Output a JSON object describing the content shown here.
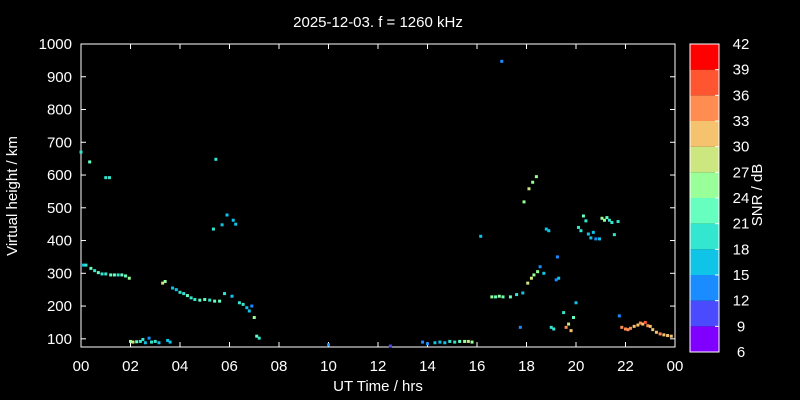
{
  "chart_data": {
    "type": "scatter",
    "title": "2025-12-03. f = 1260 kHz",
    "xlabel": "UT Time / hrs",
    "ylabel": "Virtual height / km",
    "colorbar_label": "SNR / dB",
    "xlim": [
      0,
      24
    ],
    "ylim": [
      75,
      1000
    ],
    "x_ticks": [
      "00",
      "02",
      "04",
      "06",
      "08",
      "10",
      "12",
      "14",
      "16",
      "18",
      "20",
      "22",
      "00"
    ],
    "y_ticks": [
      "100",
      "200",
      "300",
      "400",
      "500",
      "600",
      "700",
      "800",
      "900",
      "1000"
    ],
    "colorbar": {
      "ticks": [
        "6",
        "9",
        "12",
        "15",
        "18",
        "21",
        "24",
        "27",
        "30",
        "33",
        "36",
        "39",
        "42"
      ],
      "bins": [
        {
          "from": 6,
          "to": 9,
          "color": "#8000ff"
        },
        {
          "from": 9,
          "to": 12,
          "color": "#4a4aff"
        },
        {
          "from": 12,
          "to": 15,
          "color": "#1a8cff"
        },
        {
          "from": 15,
          "to": 18,
          "color": "#10c4e8"
        },
        {
          "from": 18,
          "to": 21,
          "color": "#33e6d0"
        },
        {
          "from": 21,
          "to": 24,
          "color": "#66ffc0"
        },
        {
          "from": 24,
          "to": 27,
          "color": "#99ff99"
        },
        {
          "from": 27,
          "to": 30,
          "color": "#cce680"
        },
        {
          "from": 30,
          "to": 33,
          "color": "#f5c26e"
        },
        {
          "from": 33,
          "to": 36,
          "color": "#ff8c50"
        },
        {
          "from": 36,
          "to": 39,
          "color": "#ff5530"
        },
        {
          "from": 39,
          "to": 42,
          "color": "#ff0000"
        }
      ]
    },
    "points": [
      {
        "t": 0.0,
        "h": 670,
        "snr": 20
      },
      {
        "t": 0.35,
        "h": 640,
        "snr": 21
      },
      {
        "t": 1.0,
        "h": 592,
        "snr": 19
      },
      {
        "t": 1.15,
        "h": 592,
        "snr": 18
      },
      {
        "t": 0.1,
        "h": 325,
        "snr": 17
      },
      {
        "t": 0.2,
        "h": 325,
        "snr": 18
      },
      {
        "t": 0.4,
        "h": 315,
        "snr": 21
      },
      {
        "t": 0.55,
        "h": 308,
        "snr": 20
      },
      {
        "t": 0.7,
        "h": 302,
        "snr": 21
      },
      {
        "t": 0.85,
        "h": 298,
        "snr": 20
      },
      {
        "t": 1.0,
        "h": 298,
        "snr": 19
      },
      {
        "t": 1.2,
        "h": 295,
        "snr": 21
      },
      {
        "t": 1.35,
        "h": 295,
        "snr": 22
      },
      {
        "t": 1.5,
        "h": 295,
        "snr": 20
      },
      {
        "t": 1.65,
        "h": 295,
        "snr": 21
      },
      {
        "t": 1.8,
        "h": 292,
        "snr": 22
      },
      {
        "t": 1.95,
        "h": 285,
        "snr": 24
      },
      {
        "t": 3.3,
        "h": 270,
        "snr": 28
      },
      {
        "t": 3.4,
        "h": 275,
        "snr": 26
      },
      {
        "t": 3.7,
        "h": 255,
        "snr": 17
      },
      {
        "t": 3.85,
        "h": 250,
        "snr": 16
      },
      {
        "t": 4.0,
        "h": 242,
        "snr": 18
      },
      {
        "t": 4.15,
        "h": 238,
        "snr": 20
      },
      {
        "t": 4.3,
        "h": 232,
        "snr": 21
      },
      {
        "t": 4.45,
        "h": 225,
        "snr": 20
      },
      {
        "t": 4.6,
        "h": 220,
        "snr": 19
      },
      {
        "t": 4.8,
        "h": 218,
        "snr": 21
      },
      {
        "t": 5.0,
        "h": 220,
        "snr": 22
      },
      {
        "t": 5.2,
        "h": 218,
        "snr": 20
      },
      {
        "t": 5.4,
        "h": 215,
        "snr": 21
      },
      {
        "t": 5.6,
        "h": 215,
        "snr": 23
      },
      {
        "t": 5.8,
        "h": 238,
        "snr": 18
      },
      {
        "t": 6.1,
        "h": 230,
        "snr": 17
      },
      {
        "t": 6.4,
        "h": 210,
        "snr": 19
      },
      {
        "t": 6.55,
        "h": 205,
        "snr": 20
      },
      {
        "t": 6.7,
        "h": 195,
        "snr": 16
      },
      {
        "t": 6.8,
        "h": 185,
        "snr": 15
      },
      {
        "t": 6.9,
        "h": 200,
        "snr": 14
      },
      {
        "t": 7.0,
        "h": 165,
        "snr": 26
      },
      {
        "t": 7.1,
        "h": 108,
        "snr": 22
      },
      {
        "t": 7.2,
        "h": 102,
        "snr": 20
      },
      {
        "t": 5.35,
        "h": 435,
        "snr": 18
      },
      {
        "t": 5.7,
        "h": 448,
        "snr": 17
      },
      {
        "t": 5.9,
        "h": 478,
        "snr": 16
      },
      {
        "t": 6.15,
        "h": 462,
        "snr": 15
      },
      {
        "t": 6.25,
        "h": 450,
        "snr": 17
      },
      {
        "t": 5.45,
        "h": 648,
        "snr": 19
      },
      {
        "t": 2.0,
        "h": 92,
        "snr": 25
      },
      {
        "t": 2.1,
        "h": 90,
        "snr": 27
      },
      {
        "t": 2.25,
        "h": 91,
        "snr": 23
      },
      {
        "t": 2.4,
        "h": 92,
        "snr": 20
      },
      {
        "t": 2.5,
        "h": 98,
        "snr": 18
      },
      {
        "t": 2.6,
        "h": 88,
        "snr": 16
      },
      {
        "t": 2.75,
        "h": 102,
        "snr": 14
      },
      {
        "t": 2.85,
        "h": 90,
        "snr": 18
      },
      {
        "t": 3.0,
        "h": 92,
        "snr": 20
      },
      {
        "t": 3.15,
        "h": 88,
        "snr": 17
      },
      {
        "t": 3.5,
        "h": 95,
        "snr": 15
      },
      {
        "t": 3.6,
        "h": 90,
        "snr": 16
      },
      {
        "t": 10.0,
        "h": 82,
        "snr": 12
      },
      {
        "t": 12.5,
        "h": 78,
        "snr": 10
      },
      {
        "t": 13.8,
        "h": 90,
        "snr": 14
      },
      {
        "t": 14.0,
        "h": 85,
        "snr": 12
      },
      {
        "t": 14.3,
        "h": 88,
        "snr": 15
      },
      {
        "t": 14.5,
        "h": 90,
        "snr": 17
      },
      {
        "t": 14.7,
        "h": 88,
        "snr": 16
      },
      {
        "t": 14.9,
        "h": 92,
        "snr": 20
      },
      {
        "t": 15.1,
        "h": 90,
        "snr": 18
      },
      {
        "t": 15.3,
        "h": 92,
        "snr": 22
      },
      {
        "t": 15.5,
        "h": 92,
        "snr": 25
      },
      {
        "t": 15.65,
        "h": 92,
        "snr": 28
      },
      {
        "t": 15.8,
        "h": 90,
        "snr": 24
      },
      {
        "t": 16.15,
        "h": 413,
        "snr": 17
      },
      {
        "t": 17.0,
        "h": 947,
        "snr": 13
      },
      {
        "t": 16.6,
        "h": 228,
        "snr": 24
      },
      {
        "t": 16.75,
        "h": 228,
        "snr": 22
      },
      {
        "t": 16.9,
        "h": 230,
        "snr": 25
      },
      {
        "t": 17.05,
        "h": 228,
        "snr": 23
      },
      {
        "t": 17.35,
        "h": 228,
        "snr": 21
      },
      {
        "t": 17.6,
        "h": 235,
        "snr": 20
      },
      {
        "t": 17.75,
        "h": 135,
        "snr": 14
      },
      {
        "t": 17.85,
        "h": 240,
        "snr": 16
      },
      {
        "t": 18.05,
        "h": 270,
        "snr": 27
      },
      {
        "t": 18.2,
        "h": 285,
        "snr": 28
      },
      {
        "t": 18.3,
        "h": 295,
        "snr": 26
      },
      {
        "t": 18.45,
        "h": 305,
        "snr": 25
      },
      {
        "t": 18.55,
        "h": 320,
        "snr": 14
      },
      {
        "t": 18.7,
        "h": 300,
        "snr": 17
      },
      {
        "t": 18.8,
        "h": 435,
        "snr": 15
      },
      {
        "t": 18.9,
        "h": 430,
        "snr": 16
      },
      {
        "t": 19.0,
        "h": 135,
        "snr": 18
      },
      {
        "t": 19.1,
        "h": 130,
        "snr": 19
      },
      {
        "t": 19.2,
        "h": 280,
        "snr": 14
      },
      {
        "t": 19.3,
        "h": 285,
        "snr": 16
      },
      {
        "t": 19.25,
        "h": 350,
        "snr": 13
      },
      {
        "t": 19.5,
        "h": 180,
        "snr": 20
      },
      {
        "t": 19.6,
        "h": 135,
        "snr": 33
      },
      {
        "t": 19.7,
        "h": 145,
        "snr": 28
      },
      {
        "t": 19.8,
        "h": 125,
        "snr": 30
      },
      {
        "t": 19.9,
        "h": 165,
        "snr": 22
      },
      {
        "t": 20.0,
        "h": 210,
        "snr": 16
      },
      {
        "t": 17.9,
        "h": 518,
        "snr": 26
      },
      {
        "t": 18.1,
        "h": 558,
        "snr": 27
      },
      {
        "t": 18.25,
        "h": 578,
        "snr": 25
      },
      {
        "t": 18.4,
        "h": 595,
        "snr": 24
      },
      {
        "t": 20.1,
        "h": 440,
        "snr": 19
      },
      {
        "t": 20.2,
        "h": 430,
        "snr": 18
      },
      {
        "t": 20.3,
        "h": 475,
        "snr": 21
      },
      {
        "t": 20.4,
        "h": 460,
        "snr": 20
      },
      {
        "t": 20.5,
        "h": 420,
        "snr": 17
      },
      {
        "t": 20.6,
        "h": 408,
        "snr": 16
      },
      {
        "t": 20.7,
        "h": 425,
        "snr": 15
      },
      {
        "t": 20.8,
        "h": 405,
        "snr": 14
      },
      {
        "t": 20.95,
        "h": 405,
        "snr": 15
      },
      {
        "t": 21.05,
        "h": 468,
        "snr": 24
      },
      {
        "t": 21.15,
        "h": 462,
        "snr": 25
      },
      {
        "t": 21.25,
        "h": 470,
        "snr": 23
      },
      {
        "t": 21.35,
        "h": 462,
        "snr": 20
      },
      {
        "t": 21.45,
        "h": 455,
        "snr": 19
      },
      {
        "t": 21.55,
        "h": 418,
        "snr": 18
      },
      {
        "t": 21.7,
        "h": 458,
        "snr": 20
      },
      {
        "t": 21.75,
        "h": 170,
        "snr": 13
      },
      {
        "t": 21.85,
        "h": 135,
        "snr": 33
      },
      {
        "t": 22.0,
        "h": 130,
        "snr": 34
      },
      {
        "t": 22.1,
        "h": 128,
        "snr": 34
      },
      {
        "t": 22.2,
        "h": 132,
        "snr": 33
      },
      {
        "t": 22.35,
        "h": 138,
        "snr": 32
      },
      {
        "t": 22.5,
        "h": 142,
        "snr": 31
      },
      {
        "t": 22.6,
        "h": 148,
        "snr": 33
      },
      {
        "t": 22.7,
        "h": 145,
        "snr": 30
      },
      {
        "t": 22.8,
        "h": 150,
        "snr": 36
      },
      {
        "t": 22.9,
        "h": 140,
        "snr": 33
      },
      {
        "t": 23.0,
        "h": 138,
        "snr": 30
      },
      {
        "t": 23.1,
        "h": 128,
        "snr": 31
      },
      {
        "t": 23.25,
        "h": 120,
        "snr": 32
      },
      {
        "t": 23.4,
        "h": 115,
        "snr": 33
      },
      {
        "t": 23.55,
        "h": 112,
        "snr": 31
      },
      {
        "t": 23.7,
        "h": 110,
        "snr": 32
      },
      {
        "t": 23.85,
        "h": 108,
        "snr": 30
      }
    ]
  }
}
